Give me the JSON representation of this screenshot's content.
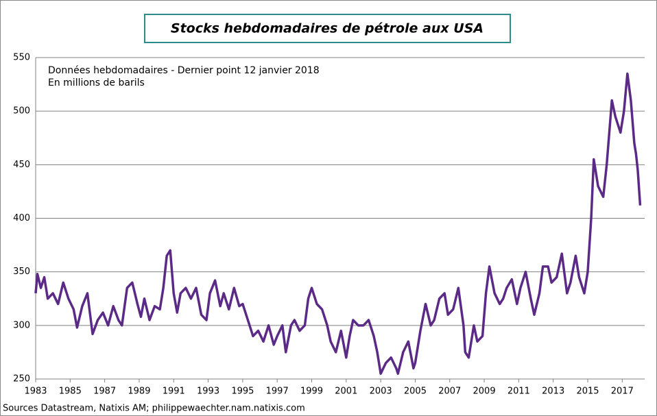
{
  "chart_data": {
    "type": "line",
    "title": "Stocks hebdomadaires de pétrole aux USA",
    "annotations": [
      "Données hebdomadaires - Dernier point 12 janvier 2018",
      "En millions de barils"
    ],
    "source": "Sources Datastream, Natixis AM; philippewaechter.nam.natixis.com",
    "color": "#5b2a86",
    "grid": true,
    "xlim": [
      1983,
      2018.3
    ],
    "xticks": [
      1983,
      1985,
      1987,
      1989,
      1991,
      1993,
      1995,
      1997,
      1999,
      2001,
      2003,
      2005,
      2007,
      2009,
      2011,
      2013,
      2015,
      2017
    ],
    "ylim": [
      250,
      550
    ],
    "yticks": [
      250,
      300,
      350,
      400,
      450,
      500,
      550
    ],
    "x": [
      1983.0,
      1983.1,
      1983.3,
      1983.5,
      1983.7,
      1984.0,
      1984.3,
      1984.6,
      1984.9,
      1985.2,
      1985.4,
      1985.7,
      1986.0,
      1986.3,
      1986.6,
      1986.9,
      1987.2,
      1987.5,
      1987.8,
      1988.0,
      1988.3,
      1988.6,
      1988.9,
      1989.1,
      1989.3,
      1989.6,
      1989.9,
      1990.2,
      1990.4,
      1990.6,
      1990.8,
      1991.0,
      1991.2,
      1991.4,
      1991.7,
      1992.0,
      1992.3,
      1992.6,
      1992.9,
      1993.1,
      1993.4,
      1993.7,
      1993.9,
      1994.2,
      1994.5,
      1994.8,
      1995.0,
      1995.3,
      1995.6,
      1995.9,
      1996.2,
      1996.5,
      1996.8,
      1997.0,
      1997.3,
      1997.5,
      1997.8,
      1998.0,
      1998.3,
      1998.6,
      1998.8,
      1999.0,
      1999.3,
      1999.6,
      1999.9,
      2000.1,
      2000.4,
      2000.7,
      2001.0,
      2001.2,
      2001.4,
      2001.7,
      2002.0,
      2002.3,
      2002.6,
      2002.8,
      2003.0,
      2003.3,
      2003.6,
      2003.9,
      2004.0,
      2004.3,
      2004.6,
      2004.9,
      2005.0,
      2005.3,
      2005.6,
      2005.9,
      2006.1,
      2006.4,
      2006.7,
      2006.9,
      2007.2,
      2007.5,
      2007.8,
      2007.9,
      2008.1,
      2008.4,
      2008.6,
      2008.9,
      2009.1,
      2009.3,
      2009.6,
      2009.9,
      2010.1,
      2010.3,
      2010.6,
      2010.9,
      2011.1,
      2011.4,
      2011.7,
      2011.9,
      2012.2,
      2012.4,
      2012.7,
      2012.9,
      2013.2,
      2013.5,
      2013.8,
      2014.0,
      2014.3,
      2014.5,
      2014.8,
      2015.0,
      2015.2,
      2015.35,
      2015.6,
      2015.9,
      2016.1,
      2016.4,
      2016.6,
      2016.9,
      2017.1,
      2017.3,
      2017.5,
      2017.7,
      2017.8,
      2017.9,
      2018.04
    ],
    "values": [
      330,
      348,
      335,
      345,
      325,
      330,
      320,
      340,
      325,
      315,
      298,
      318,
      330,
      292,
      305,
      312,
      300,
      318,
      305,
      300,
      335,
      340,
      320,
      308,
      325,
      305,
      318,
      315,
      335,
      365,
      370,
      330,
      312,
      330,
      335,
      325,
      335,
      310,
      305,
      330,
      342,
      318,
      330,
      315,
      335,
      318,
      320,
      305,
      290,
      295,
      285,
      300,
      282,
      290,
      300,
      275,
      300,
      305,
      295,
      300,
      325,
      335,
      320,
      315,
      300,
      285,
      275,
      295,
      270,
      290,
      305,
      300,
      300,
      305,
      290,
      275,
      255,
      265,
      270,
      260,
      255,
      275,
      285,
      260,
      265,
      295,
      320,
      300,
      305,
      325,
      330,
      310,
      315,
      335,
      300,
      275,
      270,
      300,
      285,
      290,
      330,
      355,
      330,
      320,
      325,
      335,
      343,
      320,
      335,
      350,
      325,
      310,
      330,
      355,
      355,
      340,
      345,
      367,
      330,
      340,
      365,
      345,
      330,
      350,
      400,
      455,
      430,
      420,
      450,
      510,
      495,
      480,
      500,
      535,
      510,
      470,
      460,
      445,
      412
    ]
  }
}
